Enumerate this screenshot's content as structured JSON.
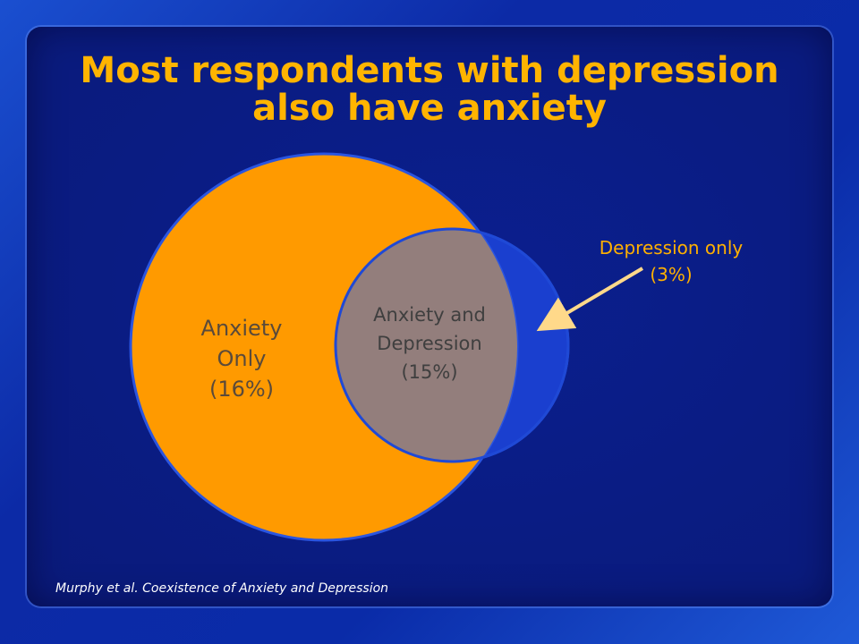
{
  "title": {
    "line1": "Most respondents with depression",
    "line2": "also have anxiety"
  },
  "diagram": {
    "anxiety_only": {
      "line1": "Anxiety",
      "line2": "Only",
      "value": "(16%)"
    },
    "overlap": {
      "line1": "Anxiety and",
      "line2": "Depression",
      "value": "(15%)"
    },
    "depression_only": {
      "line1": "Depression only",
      "value": "(3%)"
    }
  },
  "colors": {
    "anxiety_circle": "#ff9a00",
    "depression_circle": "#1a3fcf",
    "overlap": "#937e7c",
    "title": "#ffb400",
    "arrow": "#ffd98a"
  },
  "source": "Murphy et al. Coexistence of Anxiety and Depression"
}
